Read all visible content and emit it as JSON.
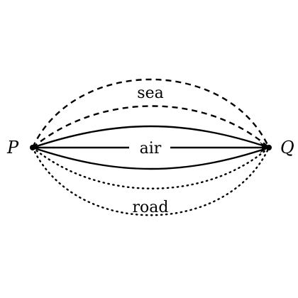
{
  "points": {
    "start": "P",
    "end": "Q"
  },
  "routes": [
    {
      "name": "sea",
      "style": "dashed",
      "label": "sea"
    },
    {
      "name": "air",
      "style": "solid",
      "label": "air"
    },
    {
      "name": "road",
      "style": "dotted",
      "label": "road"
    }
  ],
  "colors": {
    "ink": "#000000",
    "background": "#ffffff"
  }
}
